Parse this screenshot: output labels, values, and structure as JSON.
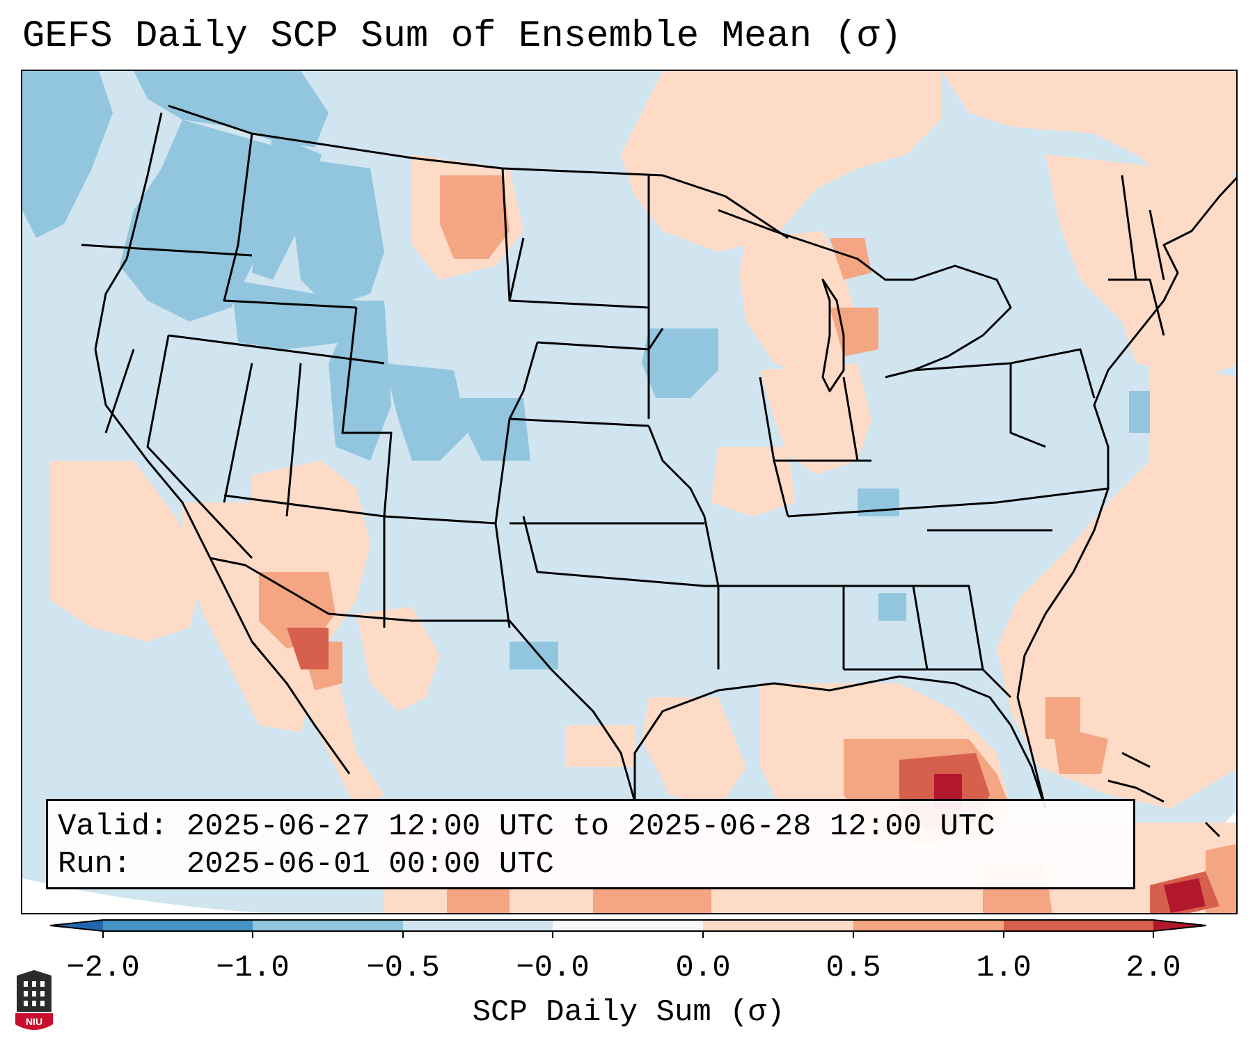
{
  "title": "GEFS Daily SCP Sum of Ensemble Mean (σ)",
  "info": {
    "valid_label": "Valid:",
    "valid_value": "2025-06-27 12:00 UTC to 2025-06-28 12:00 UTC",
    "run_label": "Run:",
    "run_value": "2025-06-01 00:00 UTC"
  },
  "colorbar": {
    "label": "SCP Daily Sum (σ)",
    "ticks": [
      "−2.0",
      "−1.0",
      "−0.5",
      "−0.0",
      "0.0",
      "0.5",
      "1.0",
      "2.0"
    ],
    "bin_colors": [
      "#4393c3",
      "#92c5de",
      "#d1e5f0",
      "#f7f7f7",
      "#fddbc7",
      "#f4a582",
      "#d6604d"
    ],
    "under_color": "#2166ac",
    "over_color": "#b2182b"
  },
  "colors": {
    "map_background": "#d1e5f0",
    "outside_projection": "#ffffff",
    "boundary": "#000000"
  },
  "logo": {
    "text": "NIU",
    "color": "#c8102e"
  }
}
